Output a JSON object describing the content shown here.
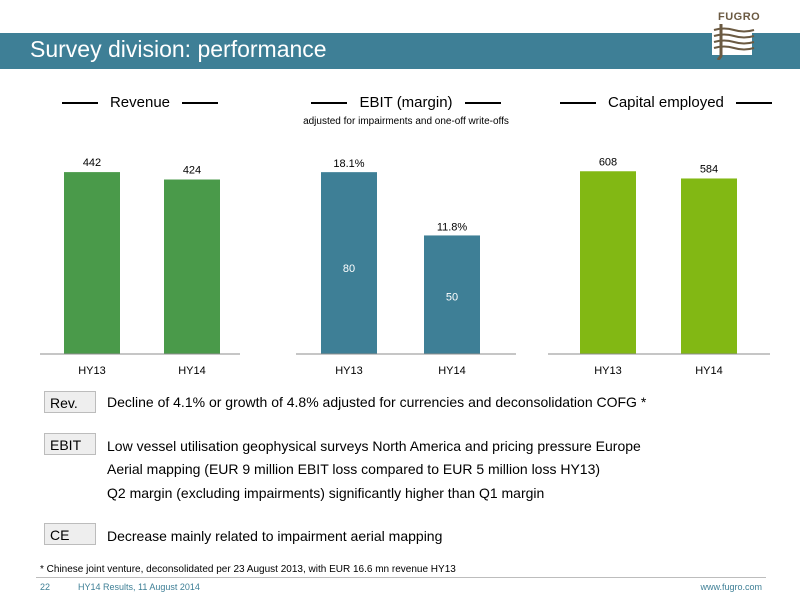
{
  "header": {
    "title": "Survey division: performance",
    "logo_text": "FUGRO"
  },
  "chart_data": [
    {
      "type": "bar",
      "title": "Revenue",
      "subtitle": "",
      "categories": [
        "HY13",
        "HY14"
      ],
      "values": [
        442,
        424
      ],
      "value_labels": [
        "442",
        "424"
      ],
      "color": "#4a9a4a",
      "ylim": [
        0,
        520
      ]
    },
    {
      "type": "bar",
      "title": "EBIT (margin)",
      "subtitle": "adjusted for impairments and one-off write-offs",
      "categories": [
        "HY13",
        "HY14"
      ],
      "values": [
        80,
        50
      ],
      "value_labels": [
        "80",
        "50"
      ],
      "margins": [
        18.1,
        11.8
      ],
      "margin_labels": [
        "18.1%",
        "11.8%"
      ],
      "color": "#3e7f96",
      "margin_max": 21.3
    },
    {
      "type": "bar",
      "title": "Capital employed",
      "subtitle": "",
      "categories": [
        "HY13",
        "HY14"
      ],
      "values": [
        608,
        584
      ],
      "value_labels": [
        "608",
        "584"
      ],
      "color": "#82b814",
      "ylim": [
        0,
        712
      ]
    }
  ],
  "commentary": {
    "rev_label": "Rev.",
    "rev_text": "Decline of 4.1% or  growth of 4.8% adjusted for currencies and deconsolidation COFG *",
    "ebit_label": "EBIT",
    "ebit_lines": [
      "Low vessel utilisation geophysical surveys North America and pricing pressure Europe",
      "Aerial mapping (EUR 9 million EBIT loss compared to EUR 5 million loss HY13)",
      "Q2 margin (excluding impairments) significantly higher than Q1 margin"
    ],
    "ce_label": "CE",
    "ce_text": "Decrease mainly related to impairment aerial mapping"
  },
  "footnote": "* Chinese joint venture, deconsolidated per 23 August 2013, with EUR 16.6 mn revenue HY13",
  "footer": {
    "page": "22",
    "event": "HY14 Results, 11 August 2014",
    "url": "www.fugro.com"
  }
}
